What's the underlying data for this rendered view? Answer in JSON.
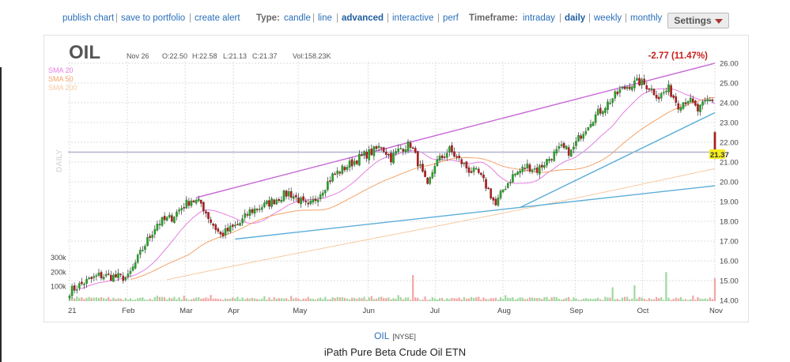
{
  "toolbar": {
    "links": [
      "publish chart",
      "save to portfolio",
      "create alert"
    ],
    "type_label": "Type:",
    "types": [
      "candle",
      "line",
      "advanced",
      "interactive",
      "perf"
    ],
    "type_selected": "advanced",
    "timeframe_label": "Timeframe:",
    "timeframes": [
      "intraday",
      "daily",
      "weekly",
      "monthly"
    ],
    "timeframe_selected": "daily",
    "settings_label": "Settings",
    "separator": "|"
  },
  "header": {
    "symbol": "OIL",
    "date": "Nov 26",
    "open": "O:22.50",
    "high": "H:22.58",
    "low": "L:21.13",
    "close": "C:21.37",
    "volume": "Vol:158.23K",
    "change": "-2.77 (11.47%)"
  },
  "footer": {
    "symbol": "OIL",
    "exchange": "[NYSE]",
    "name": "iPath Pure Beta Crude Oil ETN"
  },
  "colors": {
    "up": "#2da02d",
    "down": "#b51f1f",
    "sma20": "#e57fe0",
    "sma50": "#f3a36a",
    "sma200": "#f6caa0",
    "trend_upper": "#c767d6",
    "trend_lower": "#5aaed8",
    "price_label_bg": "#f7ef1d",
    "change_color": "#c81e1e",
    "vol_up": "#9ed89e",
    "vol_down": "#f2a6a6"
  },
  "chart_data": {
    "type": "candlestick",
    "title": "OIL",
    "timeframe_label": "DAILY",
    "ylim": [
      14,
      26
    ],
    "y_ticks": [
      "14.00",
      "15.00",
      "16.00",
      "17.00",
      "18.00",
      "19.00",
      "20.00",
      "21.00",
      "22.00",
      "23.00",
      "24.00",
      "25.00",
      "26.00"
    ],
    "x_ticks": [
      "21",
      "Feb",
      "Mar",
      "Apr",
      "May",
      "Jun",
      "Jul",
      "Aug",
      "Sep",
      "Oct",
      "Nov"
    ],
    "volume_ticks": [
      "100k",
      "200k",
      "300k"
    ],
    "last_price": "21.37",
    "sma_legend": [
      "SMA 20",
      "SMA 50",
      "SMA 200"
    ],
    "close_anchors": [
      {
        "d": 0,
        "c": 14.45
      },
      {
        "d": 6,
        "c": 14.9
      },
      {
        "d": 12,
        "c": 15.25
      },
      {
        "d": 18,
        "c": 15.2
      },
      {
        "d": 24,
        "c": 15.15
      },
      {
        "d": 30,
        "c": 16.6
      },
      {
        "d": 36,
        "c": 17.9
      },
      {
        "d": 42,
        "c": 18.2
      },
      {
        "d": 46,
        "c": 18.7
      },
      {
        "d": 50,
        "c": 19.1
      },
      {
        "d": 54,
        "c": 18.9
      },
      {
        "d": 58,
        "c": 18.0
      },
      {
        "d": 62,
        "c": 17.3
      },
      {
        "d": 66,
        "c": 17.6
      },
      {
        "d": 70,
        "c": 17.9
      },
      {
        "d": 74,
        "c": 18.5
      },
      {
        "d": 80,
        "c": 18.8
      },
      {
        "d": 86,
        "c": 19.2
      },
      {
        "d": 90,
        "c": 19.45
      },
      {
        "d": 94,
        "c": 19.1
      },
      {
        "d": 98,
        "c": 18.7
      },
      {
        "d": 102,
        "c": 19.3
      },
      {
        "d": 108,
        "c": 20.3
      },
      {
        "d": 114,
        "c": 20.8
      },
      {
        "d": 120,
        "c": 21.3
      },
      {
        "d": 124,
        "c": 21.5
      },
      {
        "d": 128,
        "c": 21.8
      },
      {
        "d": 132,
        "c": 21.2
      },
      {
        "d": 136,
        "c": 21.7
      },
      {
        "d": 140,
        "c": 21.9
      },
      {
        "d": 144,
        "c": 20.7
      },
      {
        "d": 147,
        "c": 19.7
      },
      {
        "d": 150,
        "c": 20.9
      },
      {
        "d": 156,
        "c": 21.6
      },
      {
        "d": 160,
        "c": 21.1
      },
      {
        "d": 164,
        "c": 20.6
      },
      {
        "d": 168,
        "c": 20.4
      },
      {
        "d": 172,
        "c": 19.6
      },
      {
        "d": 175,
        "c": 18.8
      },
      {
        "d": 178,
        "c": 19.6
      },
      {
        "d": 182,
        "c": 20.3
      },
      {
        "d": 188,
        "c": 20.8
      },
      {
        "d": 192,
        "c": 20.6
      },
      {
        "d": 198,
        "c": 21.3
      },
      {
        "d": 202,
        "c": 21.7
      },
      {
        "d": 206,
        "c": 21.5
      },
      {
        "d": 210,
        "c": 22.4
      },
      {
        "d": 214,
        "c": 23.1
      },
      {
        "d": 218,
        "c": 23.6
      },
      {
        "d": 222,
        "c": 24.1
      },
      {
        "d": 226,
        "c": 24.6
      },
      {
        "d": 230,
        "c": 24.9
      },
      {
        "d": 234,
        "c": 25.05
      },
      {
        "d": 238,
        "c": 24.8
      },
      {
        "d": 242,
        "c": 24.3
      },
      {
        "d": 246,
        "c": 24.7
      },
      {
        "d": 250,
        "c": 23.9
      },
      {
        "d": 254,
        "c": 24.2
      },
      {
        "d": 258,
        "c": 23.6
      },
      {
        "d": 262,
        "c": 24.1
      },
      {
        "d": 264,
        "c": 24.14
      },
      {
        "d": 265,
        "c": 21.37
      }
    ],
    "volume_spikes": [
      {
        "d": 141,
        "v": 180
      },
      {
        "d": 245,
        "v": 200
      },
      {
        "d": 232,
        "v": 110
      },
      {
        "d": 223,
        "v": 95
      },
      {
        "d": 265,
        "v": 158
      }
    ],
    "trendlines": [
      {
        "name": "upper channel",
        "from": {
          "d": 52,
          "p": 19.2
        },
        "to": {
          "d": 266,
          "p": 26.0
        }
      },
      {
        "name": "lower support 1",
        "from": {
          "d": 68,
          "p": 17.1
        },
        "to": {
          "d": 266,
          "p": 19.8
        }
      },
      {
        "name": "lower support 2",
        "from": {
          "d": 185,
          "p": 18.7
        },
        "to": {
          "d": 266,
          "p": 23.5
        }
      }
    ],
    "hline": 21.5,
    "n_days": 266
  }
}
